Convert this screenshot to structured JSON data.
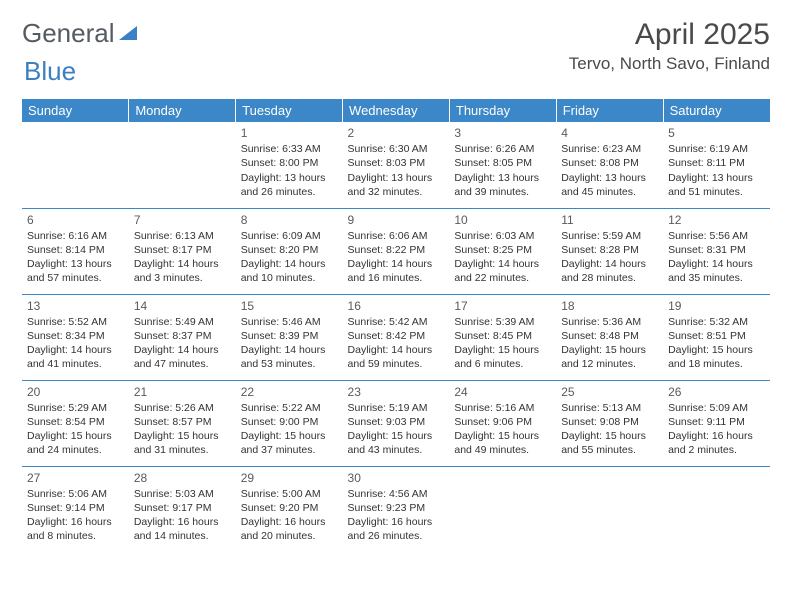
{
  "logo": {
    "word1": "General",
    "word2": "Blue"
  },
  "title": "April 2025",
  "location": "Tervo, North Savo, Finland",
  "colors": {
    "header_bg": "#3b87c8",
    "header_text": "#ffffff",
    "border": "#3b87c8",
    "text": "#333333",
    "logo_gray": "#555b61",
    "logo_blue": "#3b7fc4",
    "background": "#ffffff"
  },
  "weekdays": [
    "Sunday",
    "Monday",
    "Tuesday",
    "Wednesday",
    "Thursday",
    "Friday",
    "Saturday"
  ],
  "weeks": [
    [
      null,
      null,
      {
        "d": "1",
        "sr": "6:33 AM",
        "ss": "8:00 PM",
        "dl": "13 hours and 26 minutes."
      },
      {
        "d": "2",
        "sr": "6:30 AM",
        "ss": "8:03 PM",
        "dl": "13 hours and 32 minutes."
      },
      {
        "d": "3",
        "sr": "6:26 AM",
        "ss": "8:05 PM",
        "dl": "13 hours and 39 minutes."
      },
      {
        "d": "4",
        "sr": "6:23 AM",
        "ss": "8:08 PM",
        "dl": "13 hours and 45 minutes."
      },
      {
        "d": "5",
        "sr": "6:19 AM",
        "ss": "8:11 PM",
        "dl": "13 hours and 51 minutes."
      }
    ],
    [
      {
        "d": "6",
        "sr": "6:16 AM",
        "ss": "8:14 PM",
        "dl": "13 hours and 57 minutes."
      },
      {
        "d": "7",
        "sr": "6:13 AM",
        "ss": "8:17 PM",
        "dl": "14 hours and 3 minutes."
      },
      {
        "d": "8",
        "sr": "6:09 AM",
        "ss": "8:20 PM",
        "dl": "14 hours and 10 minutes."
      },
      {
        "d": "9",
        "sr": "6:06 AM",
        "ss": "8:22 PM",
        "dl": "14 hours and 16 minutes."
      },
      {
        "d": "10",
        "sr": "6:03 AM",
        "ss": "8:25 PM",
        "dl": "14 hours and 22 minutes."
      },
      {
        "d": "11",
        "sr": "5:59 AM",
        "ss": "8:28 PM",
        "dl": "14 hours and 28 minutes."
      },
      {
        "d": "12",
        "sr": "5:56 AM",
        "ss": "8:31 PM",
        "dl": "14 hours and 35 minutes."
      }
    ],
    [
      {
        "d": "13",
        "sr": "5:52 AM",
        "ss": "8:34 PM",
        "dl": "14 hours and 41 minutes."
      },
      {
        "d": "14",
        "sr": "5:49 AM",
        "ss": "8:37 PM",
        "dl": "14 hours and 47 minutes."
      },
      {
        "d": "15",
        "sr": "5:46 AM",
        "ss": "8:39 PM",
        "dl": "14 hours and 53 minutes."
      },
      {
        "d": "16",
        "sr": "5:42 AM",
        "ss": "8:42 PM",
        "dl": "14 hours and 59 minutes."
      },
      {
        "d": "17",
        "sr": "5:39 AM",
        "ss": "8:45 PM",
        "dl": "15 hours and 6 minutes."
      },
      {
        "d": "18",
        "sr": "5:36 AM",
        "ss": "8:48 PM",
        "dl": "15 hours and 12 minutes."
      },
      {
        "d": "19",
        "sr": "5:32 AM",
        "ss": "8:51 PM",
        "dl": "15 hours and 18 minutes."
      }
    ],
    [
      {
        "d": "20",
        "sr": "5:29 AM",
        "ss": "8:54 PM",
        "dl": "15 hours and 24 minutes."
      },
      {
        "d": "21",
        "sr": "5:26 AM",
        "ss": "8:57 PM",
        "dl": "15 hours and 31 minutes."
      },
      {
        "d": "22",
        "sr": "5:22 AM",
        "ss": "9:00 PM",
        "dl": "15 hours and 37 minutes."
      },
      {
        "d": "23",
        "sr": "5:19 AM",
        "ss": "9:03 PM",
        "dl": "15 hours and 43 minutes."
      },
      {
        "d": "24",
        "sr": "5:16 AM",
        "ss": "9:06 PM",
        "dl": "15 hours and 49 minutes."
      },
      {
        "d": "25",
        "sr": "5:13 AM",
        "ss": "9:08 PM",
        "dl": "15 hours and 55 minutes."
      },
      {
        "d": "26",
        "sr": "5:09 AM",
        "ss": "9:11 PM",
        "dl": "16 hours and 2 minutes."
      }
    ],
    [
      {
        "d": "27",
        "sr": "5:06 AM",
        "ss": "9:14 PM",
        "dl": "16 hours and 8 minutes."
      },
      {
        "d": "28",
        "sr": "5:03 AM",
        "ss": "9:17 PM",
        "dl": "16 hours and 14 minutes."
      },
      {
        "d": "29",
        "sr": "5:00 AM",
        "ss": "9:20 PM",
        "dl": "16 hours and 20 minutes."
      },
      {
        "d": "30",
        "sr": "4:56 AM",
        "ss": "9:23 PM",
        "dl": "16 hours and 26 minutes."
      },
      null,
      null,
      null
    ]
  ],
  "labels": {
    "sunrise": "Sunrise:",
    "sunset": "Sunset:",
    "daylight": "Daylight:"
  }
}
